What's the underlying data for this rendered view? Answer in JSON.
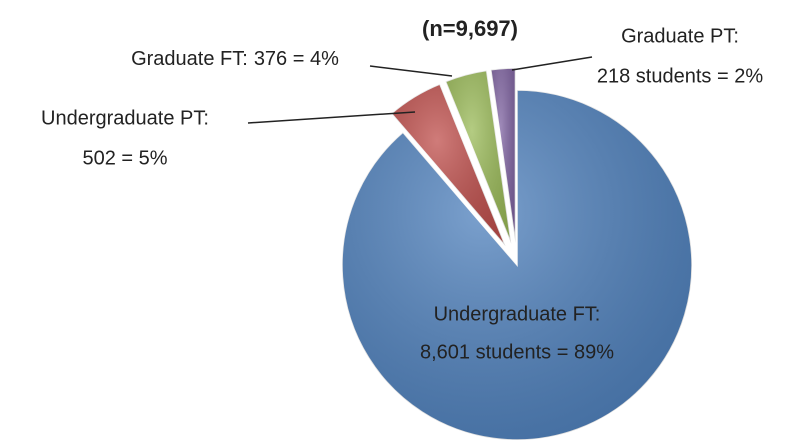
{
  "chart_data": {
    "type": "pie",
    "subtitle": "(n=9,697)",
    "categories": [
      "Undergraduate FT:",
      "Undergraduate PT:",
      "Graduate FT:",
      "Graduate PT:"
    ],
    "values": [
      8601,
      502,
      376,
      218
    ],
    "value_labels": [
      "8,601 students = 89%",
      "502 = 5%",
      "376 = 4%",
      "218 students = 2%"
    ],
    "colors": [
      "#4f81bd",
      "#c0504d",
      "#9bbb59",
      "#8064a2"
    ]
  }
}
